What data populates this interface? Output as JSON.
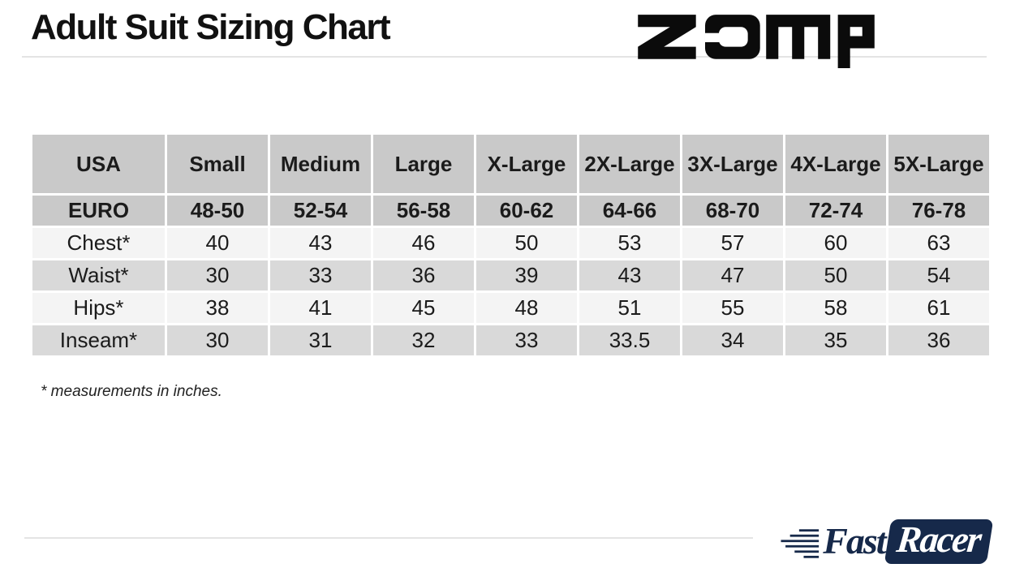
{
  "page": {
    "title": "Adult Suit Sizing Chart",
    "footnote": "* measurements in inches."
  },
  "logos": {
    "zamp": {
      "name": "zamp"
    },
    "fastracer": {
      "fast": "Fast",
      "racer": "Racer"
    }
  },
  "chart_data": {
    "type": "table",
    "title": "Adult Suit Sizing Chart",
    "units": "inches",
    "columns": [
      "USA",
      "Small",
      "Medium",
      "Large",
      "X-Large",
      "2X-Large",
      "3X-Large",
      "4X-Large",
      "5X-Large"
    ],
    "rows": [
      {
        "label": "EURO",
        "values": [
          "48-50",
          "52-54",
          "56-58",
          "60-62",
          "64-66",
          "68-70",
          "72-74",
          "76-78"
        ]
      },
      {
        "label": "Chest*",
        "values": [
          "40",
          "43",
          "46",
          "50",
          "53",
          "57",
          "60",
          "63"
        ]
      },
      {
        "label": "Waist*",
        "values": [
          "30",
          "33",
          "36",
          "39",
          "43",
          "47",
          "50",
          "54"
        ]
      },
      {
        "label": "Hips*",
        "values": [
          "38",
          "41",
          "45",
          "48",
          "51",
          "55",
          "58",
          "61"
        ]
      },
      {
        "label": "Inseam*",
        "values": [
          "30",
          "31",
          "32",
          "33",
          "33.5",
          "34",
          "35",
          "36"
        ]
      }
    ]
  },
  "colors": {
    "header_gray": "#c9c9c9",
    "row_light": "#f4f4f4",
    "row_mid": "#d9d9d9",
    "divider": "#e4e4e4",
    "navy": "#16294a",
    "text": "#1b1b1b"
  }
}
